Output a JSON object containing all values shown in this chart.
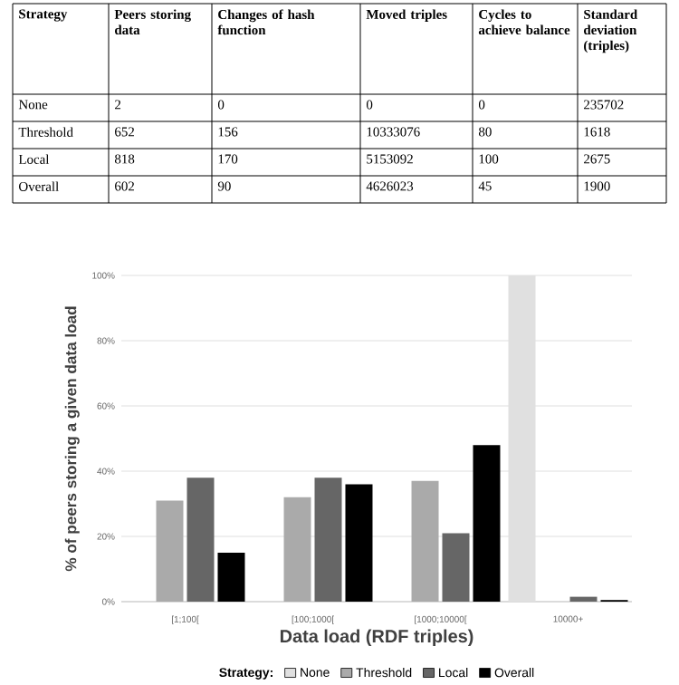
{
  "chart_data": [
    {
      "type": "other",
      "annotations": [
        "Strategy",
        "Peers storing data",
        "Changes of hash function",
        "Moved triples",
        "Cycles to achieve balance",
        "Standard deviation (triples)",
        "None",
        "2",
        "0",
        "0",
        "0",
        "235702",
        "Threshold",
        "652",
        "156",
        "10333076",
        "80",
        "1618",
        "Local",
        "818",
        "170",
        "5153092",
        "100",
        "2675",
        "Overall",
        "602",
        "90",
        "4626023",
        "45",
        "1900"
      ]
    },
    {
      "type": "bar",
      "xlabel": "Data load (RDF triples)",
      "ylabel": "% of peers storing a given data load",
      "legend_title": "Strategy:",
      "categories": [
        "[1;100[",
        "[100;1000[",
        "[1000;10000[",
        "10000+"
      ],
      "series": [
        {
          "name": "None",
          "color": "#e0e0e0",
          "values": [
            0,
            0,
            0,
            100
          ]
        },
        {
          "name": "Threshold",
          "color": "#aaaaaa",
          "values": [
            31,
            32,
            37,
            0
          ]
        },
        {
          "name": "Local",
          "color": "#666666",
          "values": [
            38,
            38,
            21,
            1.5
          ]
        },
        {
          "name": "Overall",
          "color": "#000000",
          "values": [
            15,
            36,
            48,
            0.5
          ]
        }
      ],
      "ylim": [
        0,
        100
      ],
      "yticks": [
        {
          "value": 0,
          "label": "0%"
        },
        {
          "value": 20,
          "label": "20%"
        },
        {
          "value": 40,
          "label": "40%"
        },
        {
          "value": 60,
          "label": "60%"
        },
        {
          "value": 80,
          "label": "80%"
        },
        {
          "value": 100,
          "label": "100%"
        }
      ],
      "grid": "y",
      "legend": "bottom"
    }
  ]
}
